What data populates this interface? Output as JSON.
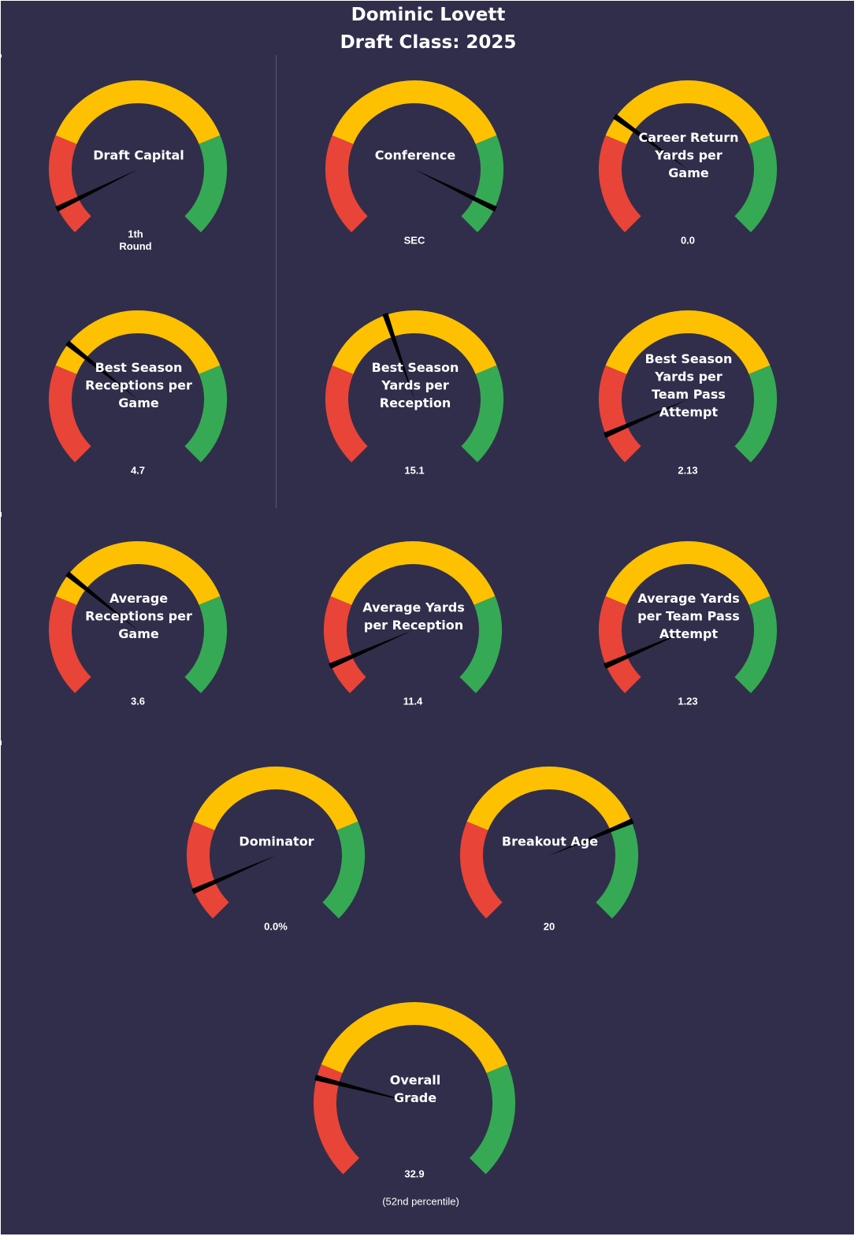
{
  "header": {
    "player_name": "Dominic Lovett",
    "draft_class": "Draft Class: 2025"
  },
  "colors": {
    "background": "#312e4b",
    "bad": "#e84437",
    "average": "#fdc102",
    "good": "#36a955",
    "needle": "#000000",
    "text": "#ffffff"
  },
  "chart_data": [
    {
      "type": "gauge",
      "title": [
        "Draft Capital"
      ],
      "value_label": [
        "1th",
        "Round"
      ],
      "needle_fraction": 0.07
    },
    {
      "type": "gauge",
      "title": [
        "Conference"
      ],
      "value_label": [
        "SEC"
      ],
      "needle_fraction": 0.93
    },
    {
      "type": "gauge",
      "title": [
        "Career Return",
        "Yards per",
        "Game"
      ],
      "value_label": [
        "0.0"
      ],
      "needle_fraction": 0.3
    },
    {
      "type": "gauge",
      "title": [
        "Best Season",
        "Receptions per",
        "Game"
      ],
      "value_label": [
        "4.7"
      ],
      "needle_fraction": 0.31
    },
    {
      "type": "gauge",
      "title": [
        "Best Season",
        "Yards per",
        "Reception"
      ],
      "value_label": [
        "15.1"
      ],
      "needle_fraction": 0.43
    },
    {
      "type": "gauge",
      "title": [
        "Best Season",
        "Yards per",
        "Team Pass",
        "Attempt"
      ],
      "value_label": [
        "2.13"
      ],
      "needle_fraction": 0.08
    },
    {
      "type": "gauge",
      "title": [
        "Average",
        "Receptions per",
        "Game"
      ],
      "value_label": [
        "3.6"
      ],
      "needle_fraction": 0.31
    },
    {
      "type": "gauge",
      "title": [
        "Average Yards",
        "per Reception"
      ],
      "value_label": [
        "11.4"
      ],
      "needle_fraction": 0.08
    },
    {
      "type": "gauge",
      "title": [
        "Average Yards",
        "per Team Pass",
        "Attempt"
      ],
      "value_label": [
        "1.23"
      ],
      "needle_fraction": 0.08
    },
    {
      "type": "gauge",
      "title": [
        "Dominator"
      ],
      "value_label": [
        "0.0%"
      ],
      "needle_fraction": 0.08
    },
    {
      "type": "gauge",
      "title": [
        "Breakout Age"
      ],
      "value_label": [
        "20"
      ],
      "needle_fraction": 0.75
    },
    {
      "type": "gauge",
      "title": [
        "Overall",
        "Grade"
      ],
      "value_label": [
        "32.9"
      ],
      "percentile_label": "(52nd  percentile)",
      "needle_fraction": 0.22
    }
  ]
}
